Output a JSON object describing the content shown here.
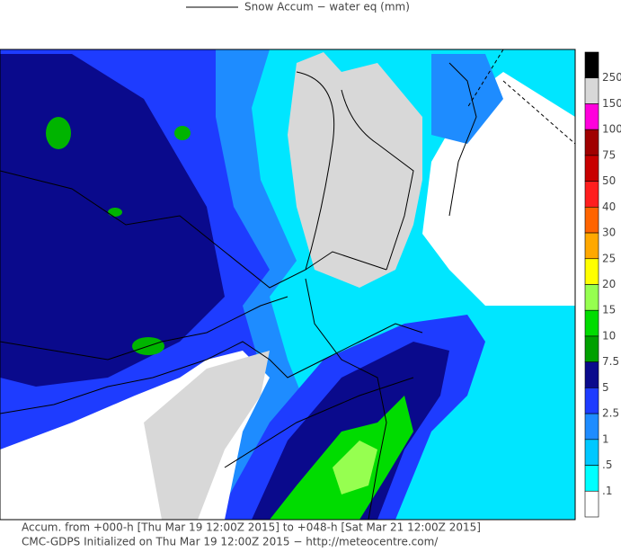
{
  "header": {
    "legend_title": "Snow Accum − water eq (mm)"
  },
  "colorbar": {
    "colors": [
      "#000000",
      "#d8d8d8",
      "#ff00dc",
      "#a00000",
      "#c80000",
      "#ff1e1e",
      "#ff6400",
      "#ffa800",
      "#ffff00",
      "#96ff50",
      "#00dc00",
      "#00a000",
      "#0a0a8c",
      "#1e3cff",
      "#1e8cff",
      "#00c8ff",
      "#00ffff",
      "#ffffff"
    ],
    "labels": [
      "250",
      "150",
      "100",
      "75",
      "50",
      "40",
      "30",
      "25",
      "20",
      "15",
      "10",
      "7.5",
      "5",
      "2.5",
      "1",
      ".5",
      ".1"
    ]
  },
  "footer": {
    "line1": "Accum. from +000-h [Thu Mar 19 12:00Z 2015] to +048-h [Sat Mar 21 12:00Z 2015]",
    "line2": "CMC-GDPS Initialized on Thu Mar 19 12:00Z 2015 − http://meteocentre.com/"
  }
}
